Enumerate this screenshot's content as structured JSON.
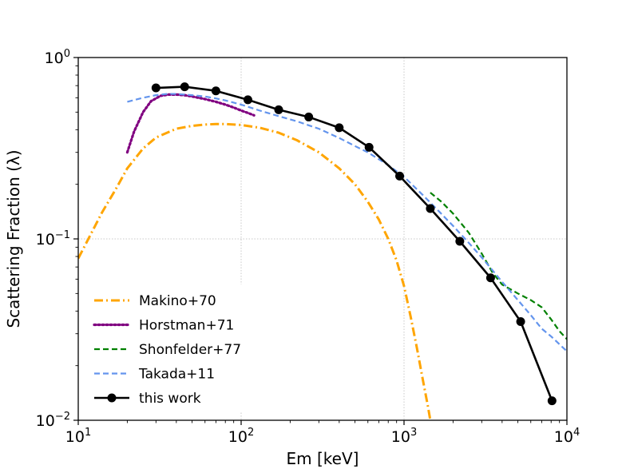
{
  "chart_data": {
    "type": "line",
    "title": "",
    "xlabel": "Em [keV]",
    "ylabel": "Scattering Fraction (λ)",
    "xscale": "log",
    "yscale": "log",
    "xlim": [
      10,
      10000
    ],
    "ylim": [
      0.01,
      1
    ],
    "grid": true,
    "legend_position": "lower-left",
    "x_ticks": [
      {
        "value": 10,
        "base": "10",
        "exp": "1"
      },
      {
        "value": 100,
        "base": "10",
        "exp": "2"
      },
      {
        "value": 1000,
        "base": "10",
        "exp": "3"
      },
      {
        "value": 10000,
        "base": "10",
        "exp": "4"
      }
    ],
    "y_ticks": [
      {
        "value": 0.01,
        "base": "10",
        "exp": "−2"
      },
      {
        "value": 0.1,
        "base": "10",
        "exp": "−1"
      },
      {
        "value": 1,
        "base": "10",
        "exp": "0"
      }
    ],
    "series": [
      {
        "name": "Makino+70",
        "color": "#ffa500",
        "style": "dashdot",
        "markers": false,
        "x": [
          10,
          12,
          14,
          17,
          20,
          25,
          30,
          40,
          50,
          60,
          70,
          80,
          100,
          130,
          170,
          220,
          300,
          400,
          500,
          600,
          700,
          800,
          900,
          1000,
          1100,
          1200,
          1300,
          1400,
          1450
        ],
        "y": [
          0.078,
          0.107,
          0.14,
          0.188,
          0.245,
          0.315,
          0.362,
          0.405,
          0.42,
          0.427,
          0.43,
          0.43,
          0.425,
          0.41,
          0.385,
          0.35,
          0.3,
          0.245,
          0.2,
          0.16,
          0.128,
          0.1,
          0.076,
          0.055,
          0.037,
          0.025,
          0.017,
          0.012,
          0.01
        ]
      },
      {
        "name": "Horstman+71",
        "color": "#800080",
        "style": "dotted",
        "markers": false,
        "x": [
          20,
          22,
          25,
          28,
          32,
          36,
          40,
          45,
          50,
          60,
          70,
          80,
          90,
          100,
          110,
          120
        ],
        "y": [
          0.3,
          0.39,
          0.5,
          0.575,
          0.615,
          0.625,
          0.625,
          0.62,
          0.61,
          0.59,
          0.57,
          0.55,
          0.53,
          0.51,
          0.495,
          0.48
        ]
      },
      {
        "name": "Shonfelder+77",
        "color": "#008000",
        "style": "dashed",
        "markers": false,
        "x": [
          1450,
          1700,
          2000,
          2500,
          3000,
          3500,
          4000,
          5000,
          6000,
          7000,
          8000,
          9000,
          10000
        ],
        "y": [
          0.18,
          0.16,
          0.138,
          0.108,
          0.083,
          0.065,
          0.056,
          0.05,
          0.046,
          0.042,
          0.036,
          0.031,
          0.028
        ]
      },
      {
        "name": "Takada+11",
        "color": "#6495ed",
        "style": "dashed",
        "markers": false,
        "x": [
          20,
          25,
          30,
          35,
          40,
          50,
          60,
          70,
          80,
          100,
          130,
          170,
          220,
          300,
          400,
          500,
          600,
          700,
          800,
          1000,
          1300,
          1600,
          2000,
          2500,
          3000,
          3500,
          4000,
          5000,
          6000,
          7000,
          8000,
          10000
        ],
        "y": [
          0.57,
          0.6,
          0.62,
          0.63,
          0.63,
          0.62,
          0.61,
          0.595,
          0.58,
          0.55,
          0.51,
          0.475,
          0.445,
          0.405,
          0.36,
          0.325,
          0.3,
          0.275,
          0.255,
          0.22,
          0.175,
          0.145,
          0.118,
          0.095,
          0.079,
          0.067,
          0.058,
          0.046,
          0.038,
          0.032,
          0.029,
          0.024
        ]
      },
      {
        "name": "this work",
        "color": "#000000",
        "style": "solid",
        "markers": true,
        "x": [
          30,
          45,
          70,
          110,
          170,
          260,
          400,
          610,
          940,
          1450,
          2200,
          3400,
          5200,
          8100
        ],
        "y": [
          0.68,
          0.69,
          0.655,
          0.585,
          0.515,
          0.47,
          0.41,
          0.32,
          0.222,
          0.147,
          0.097,
          0.061,
          0.035,
          0.0128
        ]
      }
    ]
  }
}
